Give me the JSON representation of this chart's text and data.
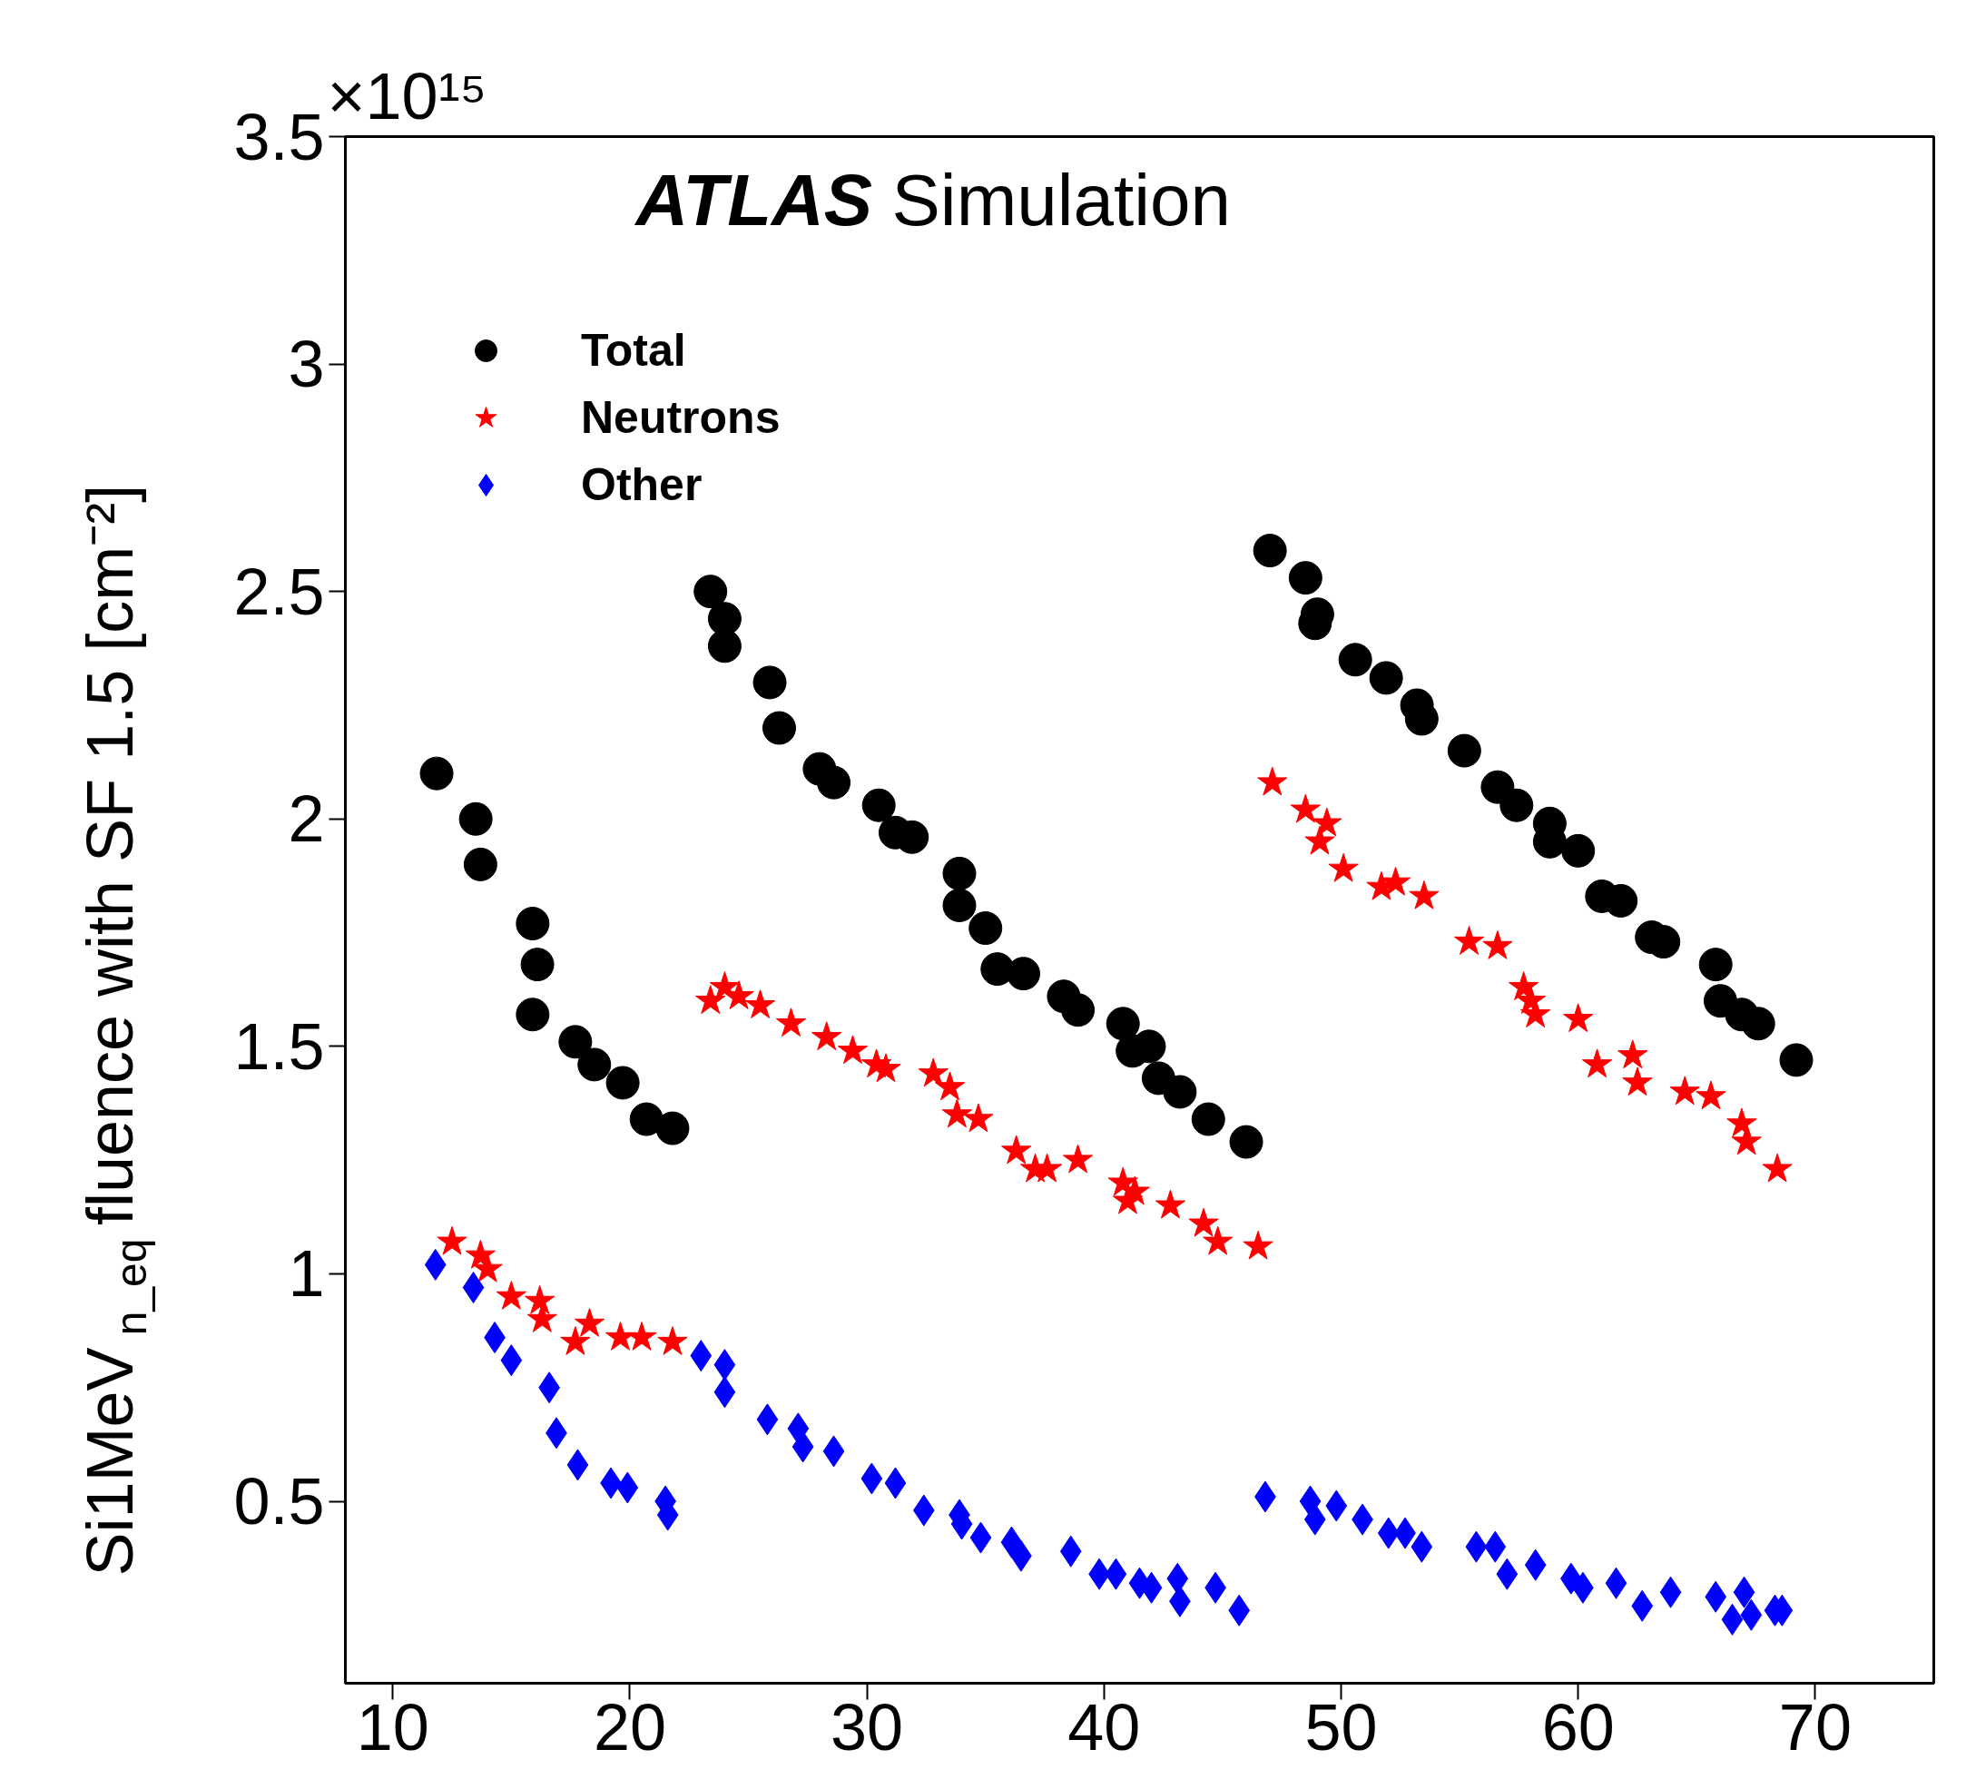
{
  "chart_data": {
    "type": "scatter",
    "ylabel": "Si1MeV$_{n_eq}$ fluence with SF 1.5 [cm⁻²]",
    "annotations": [
      "ATLAS Simulation",
      "×10¹⁵"
    ],
    "xlim": [
      8,
      75
    ],
    "ylim": [
      0.1,
      3.5
    ],
    "xticks": [
      10,
      20,
      30,
      40,
      50,
      60,
      70
    ],
    "yticks": [
      {
        "value": 0.5,
        "label": "0.5"
      },
      1,
      {
        "value": 1.5,
        "label": "1.5"
      },
      2,
      {
        "value": 2.5,
        "label": "2.5"
      },
      3,
      {
        "value": 3.5,
        "label": "3.5"
      }
    ],
    "grid": false,
    "legend": "top left",
    "series": [
      {
        "name": "Total",
        "color": "#000000",
        "marker": "circle",
        "x": [
          11.85,
          13.5,
          13.7,
          15.9,
          16.1,
          15.9,
          17.7,
          18.5,
          19.7,
          20.7,
          21.8,
          23.4,
          24.0,
          24.0,
          25.9,
          26.3,
          28.0,
          28.6,
          30.5,
          31.2,
          31.9,
          33.9,
          33.9,
          35.0,
          35.5,
          36.6,
          38.3,
          38.9,
          40.8,
          41.2,
          41.9,
          42.3,
          43.2,
          44.4,
          46.0,
          47.0,
          48.5,
          48.9,
          49.0,
          50.6,
          51.9,
          53.2,
          53.4,
          55.2,
          56.6,
          57.4,
          58.8,
          58.8,
          60.0,
          61.0,
          61.8,
          63.1,
          63.6,
          65.8,
          66.0,
          66.9,
          67.6,
          69.2
        ],
        "values": [
          2.1,
          2.0,
          1.9,
          1.77,
          1.68,
          1.57,
          1.51,
          1.46,
          1.42,
          1.34,
          1.32,
          2.5,
          2.44,
          2.38,
          2.3,
          2.2,
          2.11,
          2.08,
          2.03,
          1.97,
          1.96,
          1.88,
          1.81,
          1.76,
          1.67,
          1.66,
          1.61,
          1.58,
          1.55,
          1.49,
          1.5,
          1.43,
          1.4,
          1.34,
          1.29,
          2.59,
          2.53,
          2.43,
          2.45,
          2.35,
          2.31,
          2.25,
          2.22,
          2.15,
          2.07,
          2.03,
          1.99,
          1.95,
          1.93,
          1.83,
          1.82,
          1.74,
          1.73,
          1.68,
          1.6,
          1.57,
          1.55,
          1.47
        ]
      },
      {
        "name": "Neutrons",
        "color": "#ff0000",
        "marker": "star",
        "x": [
          12.5,
          13.7,
          14.0,
          15.0,
          16.2,
          16.3,
          17.7,
          18.3,
          19.6,
          20.5,
          21.8,
          23.4,
          24.0,
          24.6,
          25.5,
          26.8,
          28.3,
          29.4,
          30.4,
          30.8,
          32.8,
          33.5,
          33.8,
          34.7,
          36.3,
          37.1,
          37.6,
          38.9,
          40.8,
          41.0,
          41.3,
          42.8,
          44.2,
          44.8,
          46.5,
          47.1,
          48.5,
          49.1,
          49.4,
          50.1,
          51.7,
          52.3,
          53.5,
          55.4,
          56.6,
          57.7,
          58.0,
          58.2,
          60.0,
          60.8,
          62.3,
          62.5,
          64.5,
          65.6,
          66.9,
          67.1,
          68.4
        ],
        "values": [
          1.07,
          1.04,
          1.01,
          0.95,
          0.94,
          0.9,
          0.85,
          0.89,
          0.86,
          0.86,
          0.85,
          1.6,
          1.63,
          1.61,
          1.59,
          1.55,
          1.52,
          1.49,
          1.46,
          1.45,
          1.44,
          1.41,
          1.35,
          1.34,
          1.27,
          1.23,
          1.23,
          1.25,
          1.2,
          1.16,
          1.18,
          1.15,
          1.11,
          1.07,
          1.06,
          2.08,
          2.02,
          1.95,
          1.99,
          1.89,
          1.85,
          1.86,
          1.83,
          1.73,
          1.72,
          1.63,
          1.6,
          1.57,
          1.56,
          1.46,
          1.48,
          1.42,
          1.4,
          1.39,
          1.33,
          1.29,
          1.23
        ]
      },
      {
        "name": "Other",
        "color": "#0000ff",
        "marker": "diamond",
        "x": [
          11.8,
          13.4,
          14.3,
          15.0,
          16.6,
          16.9,
          17.8,
          19.2,
          19.9,
          21.5,
          21.6,
          23.0,
          24.0,
          24.0,
          25.8,
          27.1,
          27.3,
          28.6,
          30.2,
          31.2,
          32.4,
          33.9,
          34.0,
          34.8,
          36.1,
          36.5,
          38.6,
          39.8,
          40.5,
          41.5,
          42.0,
          43.1,
          43.2,
          44.7,
          45.7,
          46.8,
          48.7,
          48.9,
          49.8,
          50.9,
          52.0,
          52.7,
          53.4,
          55.7,
          56.5,
          57.0,
          58.2,
          59.7,
          60.2,
          61.6,
          62.7,
          63.9,
          65.8,
          66.5,
          67.0,
          67.3,
          68.3,
          68.6
        ],
        "values": [
          1.02,
          0.97,
          0.86,
          0.81,
          0.75,
          0.65,
          0.58,
          0.54,
          0.53,
          0.5,
          0.47,
          0.82,
          0.8,
          0.74,
          0.68,
          0.66,
          0.62,
          0.61,
          0.55,
          0.54,
          0.48,
          0.47,
          0.45,
          0.42,
          0.41,
          0.38,
          0.39,
          0.34,
          0.34,
          0.32,
          0.31,
          0.33,
          0.28,
          0.31,
          0.26,
          0.51,
          0.5,
          0.46,
          0.49,
          0.46,
          0.43,
          0.43,
          0.4,
          0.4,
          0.4,
          0.34,
          0.36,
          0.33,
          0.31,
          0.32,
          0.27,
          0.3,
          0.29,
          0.24,
          0.3,
          0.25,
          0.26,
          0.26
        ]
      }
    ]
  }
}
